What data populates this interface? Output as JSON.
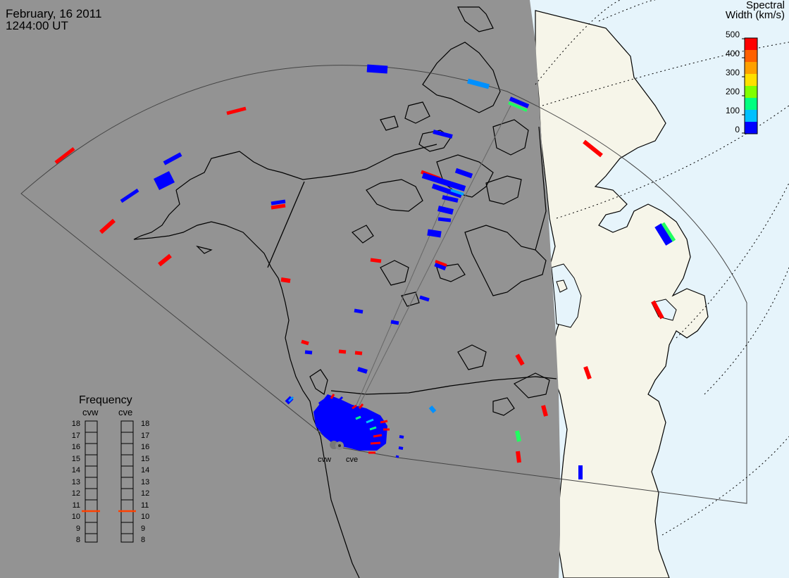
{
  "header": {
    "date": "February, 16 2011",
    "time": "1244:00 UT"
  },
  "colorbar": {
    "title_line1": "Spectral",
    "title_line2": "Width (km/s)",
    "ticks": [
      "500",
      "400",
      "300",
      "200",
      "100",
      "0"
    ],
    "colors": [
      "#0000ff",
      "#00a0ff",
      "#00ffc0",
      "#40ff00",
      "#c0ff00",
      "#ffd000",
      "#ff8000",
      "#ff0000"
    ],
    "min": 0,
    "max": 500
  },
  "frequency_panel": {
    "title": "Frequency",
    "radars": [
      "cvw",
      "cve"
    ],
    "levels": [
      "18",
      "17",
      "16",
      "15",
      "14",
      "13",
      "12",
      "11",
      "10",
      "9",
      "8"
    ],
    "current_mhz": [
      10.6,
      10.6
    ],
    "marker_color": "#ff4000"
  },
  "radar_sites": [
    "cvw",
    "cve"
  ],
  "colors": {
    "night": "#939393",
    "day_land": "#f6f5e9",
    "day_ocean": "#e6f4fb",
    "outline": "#000000",
    "fov": "#444444"
  }
}
